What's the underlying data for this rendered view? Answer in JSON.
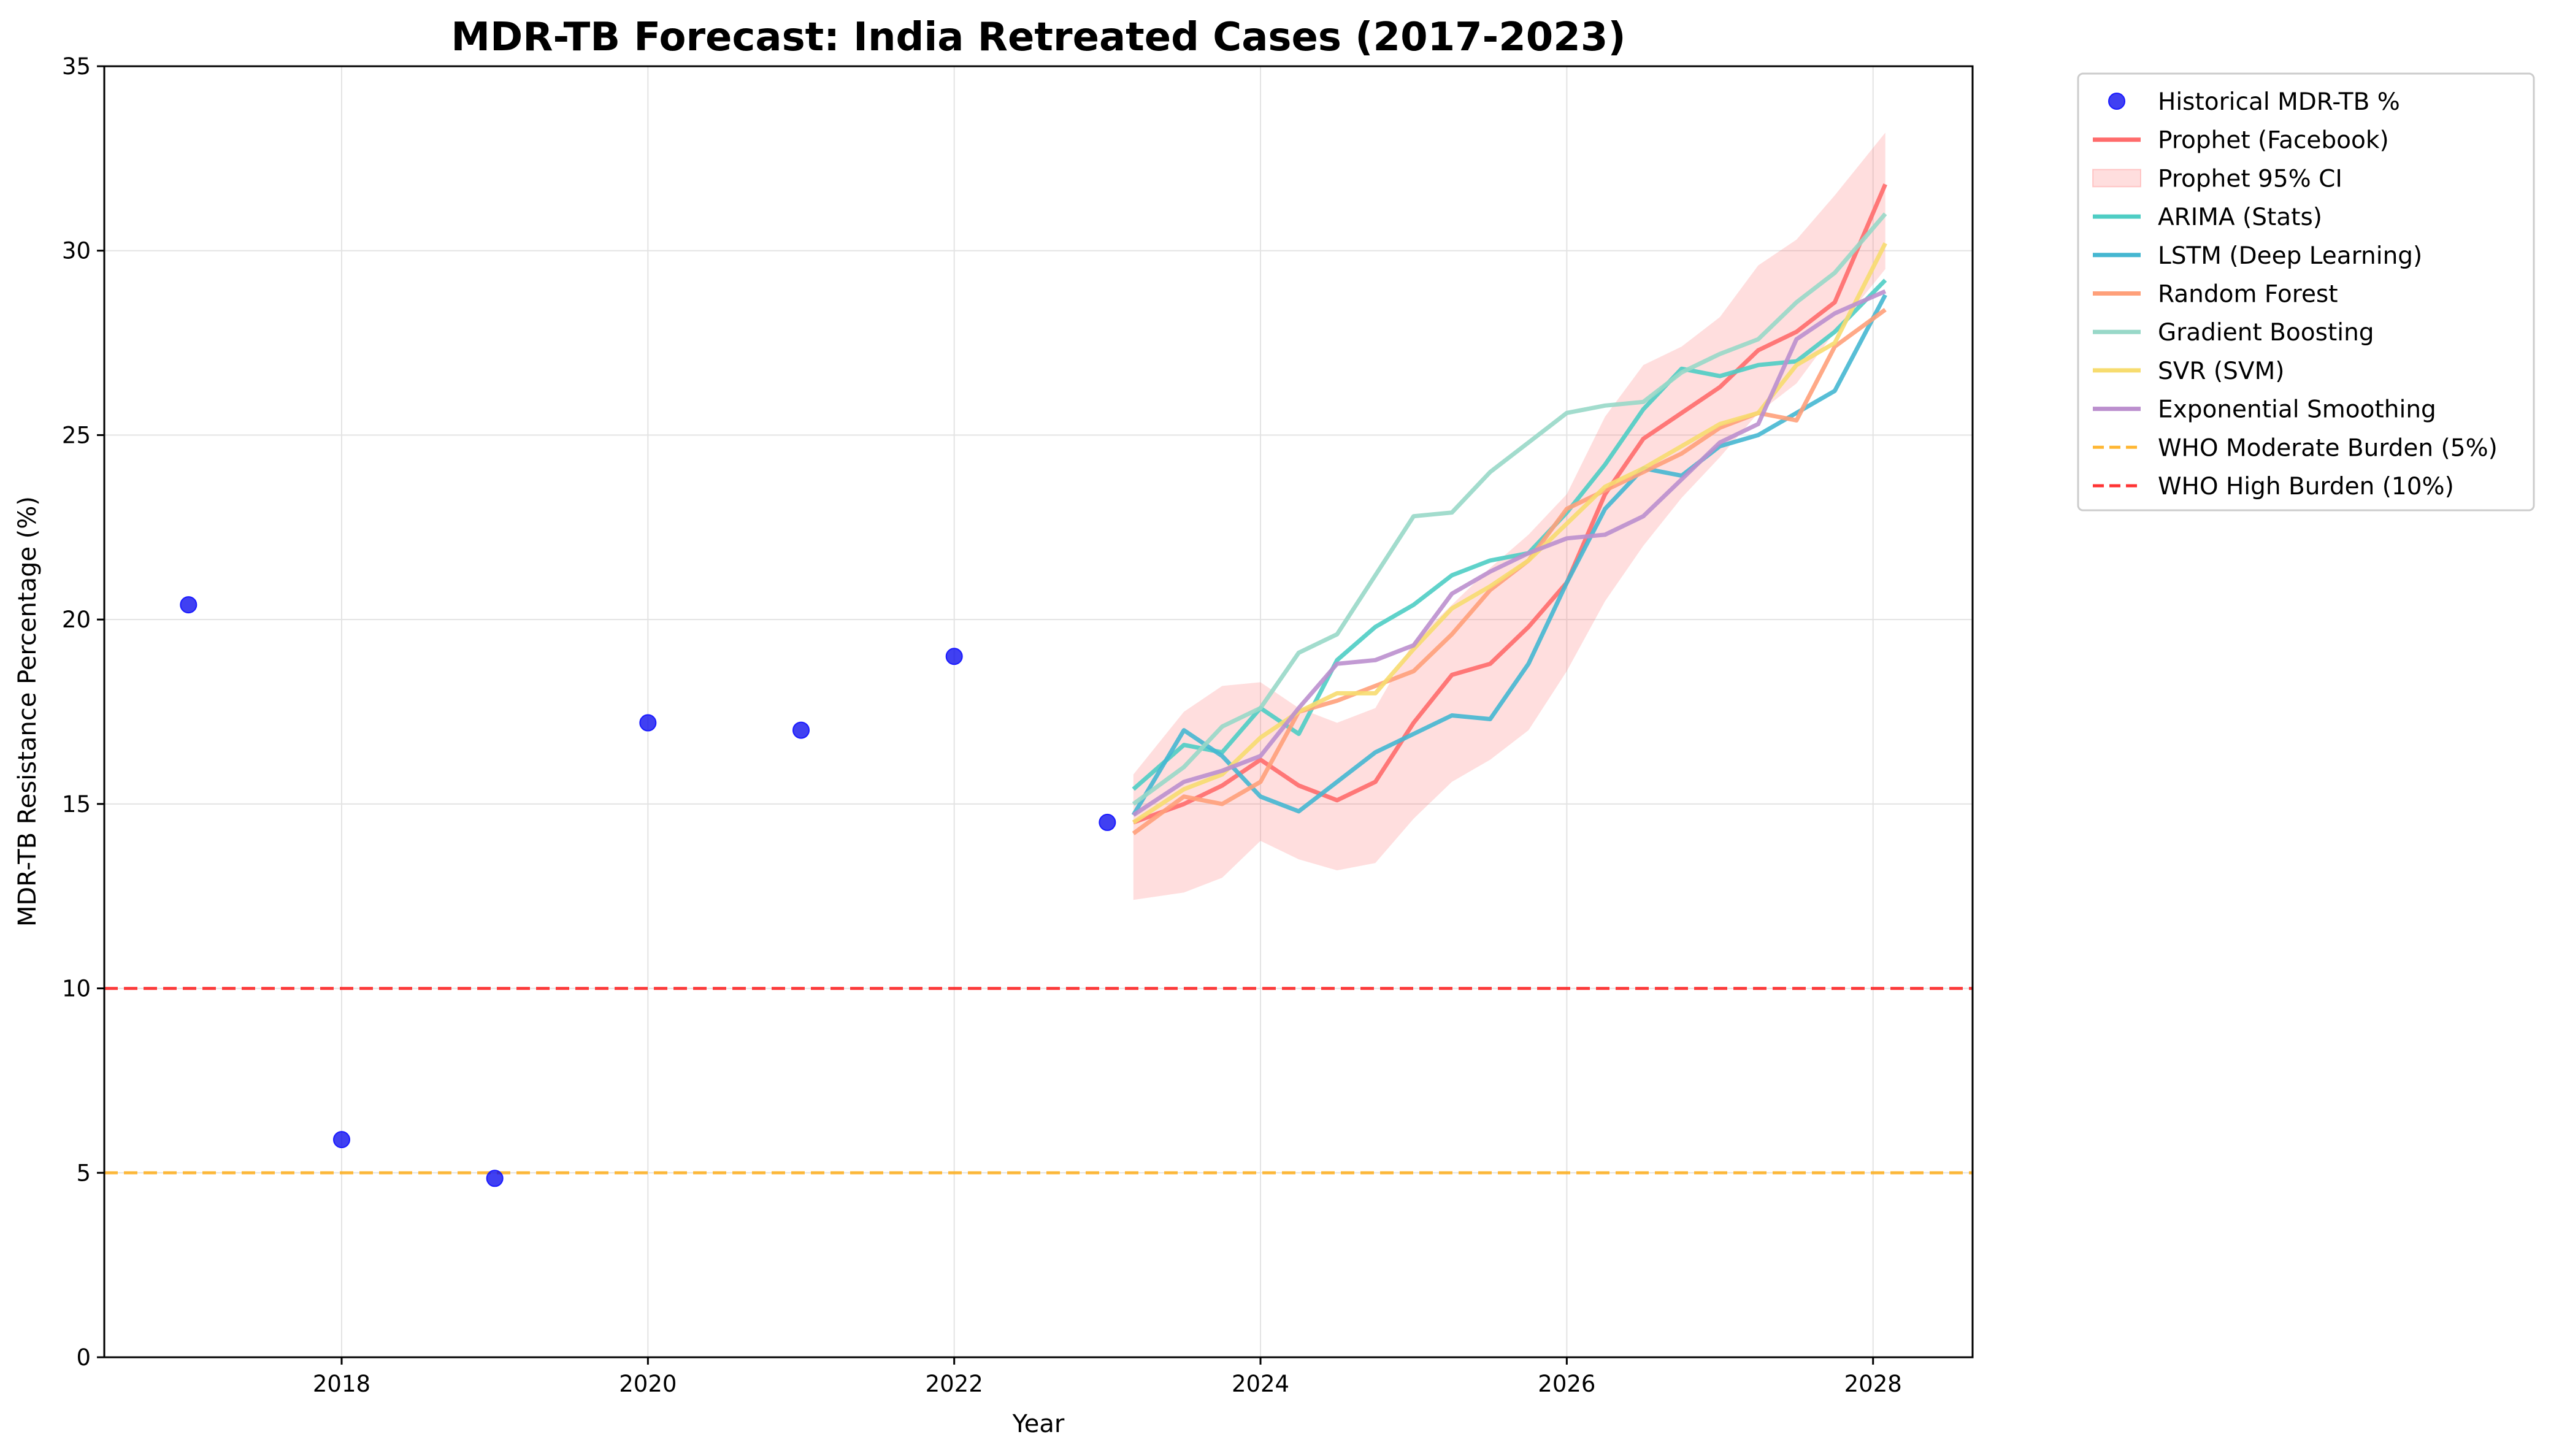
{
  "chart_data": {
    "type": "line",
    "title": "MDR-TB Forecast: India Retreated Cases (2017-2023)",
    "xlabel": "Year",
    "ylabel": "MDR-TB Resistance Percentage (%)",
    "xlim": [
      2016.45,
      2028.65
    ],
    "ylim": [
      0,
      35
    ],
    "xticks": [
      2018,
      2020,
      2022,
      2024,
      2026,
      2028
    ],
    "yticks": [
      0,
      5,
      10,
      15,
      20,
      25,
      30,
      35
    ],
    "grid": true,
    "legend_position": "outside-top-right",
    "historical": {
      "name": "Historical MDR-TB %",
      "color": "#0000ee",
      "x": [
        2017,
        2018,
        2019,
        2020,
        2021,
        2022,
        2023
      ],
      "y": [
        20.4,
        5.9,
        4.85,
        17.2,
        17.0,
        19.0,
        14.5
      ]
    },
    "prophet_ci": {
      "name": "Prophet 95% CI",
      "color": "#ff6b6b",
      "x": [
        2023.17,
        2023.5,
        2023.75,
        2024.0,
        2024.25,
        2024.5,
        2024.75,
        2025.0,
        2025.25,
        2025.5,
        2025.75,
        2026.0,
        2026.25,
        2026.5,
        2026.75,
        2027.0,
        2027.25,
        2027.5,
        2027.75,
        2028.08
      ],
      "lower": [
        12.4,
        12.6,
        13.0,
        14.0,
        13.5,
        13.2,
        13.4,
        14.6,
        15.6,
        16.2,
        17.0,
        18.6,
        20.5,
        22.0,
        23.3,
        24.4,
        25.6,
        26.4,
        27.8,
        29.5
      ],
      "upper": [
        15.8,
        17.5,
        18.2,
        18.3,
        17.6,
        17.2,
        17.6,
        19.4,
        20.4,
        21.4,
        22.3,
        23.4,
        25.5,
        26.9,
        27.4,
        28.2,
        29.6,
        30.3,
        31.5,
        33.2
      ]
    },
    "series": [
      {
        "name": "Prophet (Facebook)",
        "color": "#ff6b6b",
        "x": [
          2023.17,
          2023.5,
          2023.75,
          2024.0,
          2024.25,
          2024.5,
          2024.75,
          2025.0,
          2025.25,
          2025.5,
          2025.75,
          2026.0,
          2026.25,
          2026.5,
          2026.75,
          2027.0,
          2027.25,
          2027.5,
          2027.75,
          2028.08
        ],
        "y": [
          14.5,
          15.0,
          15.5,
          16.2,
          15.5,
          15.1,
          15.6,
          17.2,
          18.5,
          18.8,
          19.8,
          21.0,
          23.4,
          24.9,
          25.6,
          26.3,
          27.3,
          27.8,
          28.6,
          31.8
        ]
      },
      {
        "name": "ARIMA (Stats)",
        "color": "#4ecdc4",
        "x": [
          2023.17,
          2023.5,
          2023.75,
          2024.0,
          2024.25,
          2024.5,
          2024.75,
          2025.0,
          2025.25,
          2025.5,
          2025.75,
          2026.0,
          2026.25,
          2026.5,
          2026.75,
          2027.0,
          2027.25,
          2027.5,
          2027.75,
          2028.08
        ],
        "y": [
          15.4,
          16.6,
          16.4,
          17.6,
          16.9,
          18.9,
          19.8,
          20.4,
          21.2,
          21.6,
          21.8,
          22.9,
          24.2,
          25.7,
          26.8,
          26.6,
          26.9,
          27.0,
          27.8,
          29.2
        ]
      },
      {
        "name": "LSTM (Deep Learning)",
        "color": "#45b7d1",
        "x": [
          2023.17,
          2023.5,
          2023.75,
          2024.0,
          2024.25,
          2024.5,
          2024.75,
          2025.0,
          2025.25,
          2025.5,
          2025.75,
          2026.0,
          2026.25,
          2026.5,
          2026.75,
          2027.0,
          2027.25,
          2027.5,
          2027.75,
          2028.08
        ],
        "y": [
          14.7,
          17.0,
          16.3,
          15.2,
          14.8,
          15.6,
          16.4,
          16.9,
          17.4,
          17.3,
          18.8,
          21.0,
          23.0,
          24.1,
          23.9,
          24.7,
          25.0,
          25.6,
          26.2,
          28.8
        ]
      },
      {
        "name": "Random Forest",
        "color": "#ffa07a",
        "x": [
          2023.17,
          2023.5,
          2023.75,
          2024.0,
          2024.25,
          2024.5,
          2024.75,
          2025.0,
          2025.25,
          2025.5,
          2025.75,
          2026.0,
          2026.25,
          2026.5,
          2026.75,
          2027.0,
          2027.25,
          2027.5,
          2027.75,
          2028.08
        ],
        "y": [
          14.2,
          15.2,
          15.0,
          15.6,
          17.5,
          17.8,
          18.2,
          18.6,
          19.6,
          20.8,
          21.6,
          23.0,
          23.5,
          24.0,
          24.5,
          25.2,
          25.6,
          25.4,
          27.4,
          28.4
        ]
      },
      {
        "name": "Gradient Boosting",
        "color": "#98d8c8",
        "x": [
          2023.17,
          2023.5,
          2023.75,
          2024.0,
          2024.25,
          2024.5,
          2024.75,
          2025.0,
          2025.25,
          2025.5,
          2025.75,
          2026.0,
          2026.25,
          2026.5,
          2026.75,
          2027.0,
          2027.25,
          2027.5,
          2027.75,
          2028.08
        ],
        "y": [
          15.0,
          16.0,
          17.1,
          17.6,
          19.1,
          19.6,
          21.2,
          22.8,
          22.9,
          24.0,
          24.8,
          25.6,
          25.8,
          25.9,
          26.7,
          27.2,
          27.6,
          28.6,
          29.4,
          31.0
        ]
      },
      {
        "name": "SVR (SVM)",
        "color": "#f7dc6f",
        "x": [
          2023.17,
          2023.5,
          2023.75,
          2024.0,
          2024.25,
          2024.5,
          2024.75,
          2025.0,
          2025.25,
          2025.5,
          2025.75,
          2026.0,
          2026.25,
          2026.5,
          2026.75,
          2027.0,
          2027.25,
          2027.5,
          2027.75,
          2028.08
        ],
        "y": [
          14.5,
          15.4,
          15.8,
          16.8,
          17.5,
          18.0,
          18.0,
          19.2,
          20.3,
          20.9,
          21.6,
          22.6,
          23.6,
          24.1,
          24.7,
          25.3,
          25.6,
          26.9,
          27.5,
          30.2
        ]
      },
      {
        "name": "Exponential Smoothing",
        "color": "#bb8fce",
        "x": [
          2023.17,
          2023.5,
          2023.75,
          2024.0,
          2024.25,
          2024.5,
          2024.75,
          2025.0,
          2025.25,
          2025.5,
          2025.75,
          2026.0,
          2026.25,
          2026.5,
          2026.75,
          2027.0,
          2027.25,
          2027.5,
          2027.75,
          2028.08
        ],
        "y": [
          14.7,
          15.6,
          15.9,
          16.3,
          17.6,
          18.8,
          18.9,
          19.3,
          20.7,
          21.3,
          21.8,
          22.2,
          22.3,
          22.8,
          23.8,
          24.8,
          25.3,
          27.6,
          28.3,
          28.9
        ]
      }
    ],
    "reference_lines": [
      {
        "name": "WHO Moderate Burden (5%)",
        "y": 5,
        "color": "#ffa500"
      },
      {
        "name": "WHO High Burden (10%)",
        "y": 10,
        "color": "#ff0000"
      }
    ]
  }
}
